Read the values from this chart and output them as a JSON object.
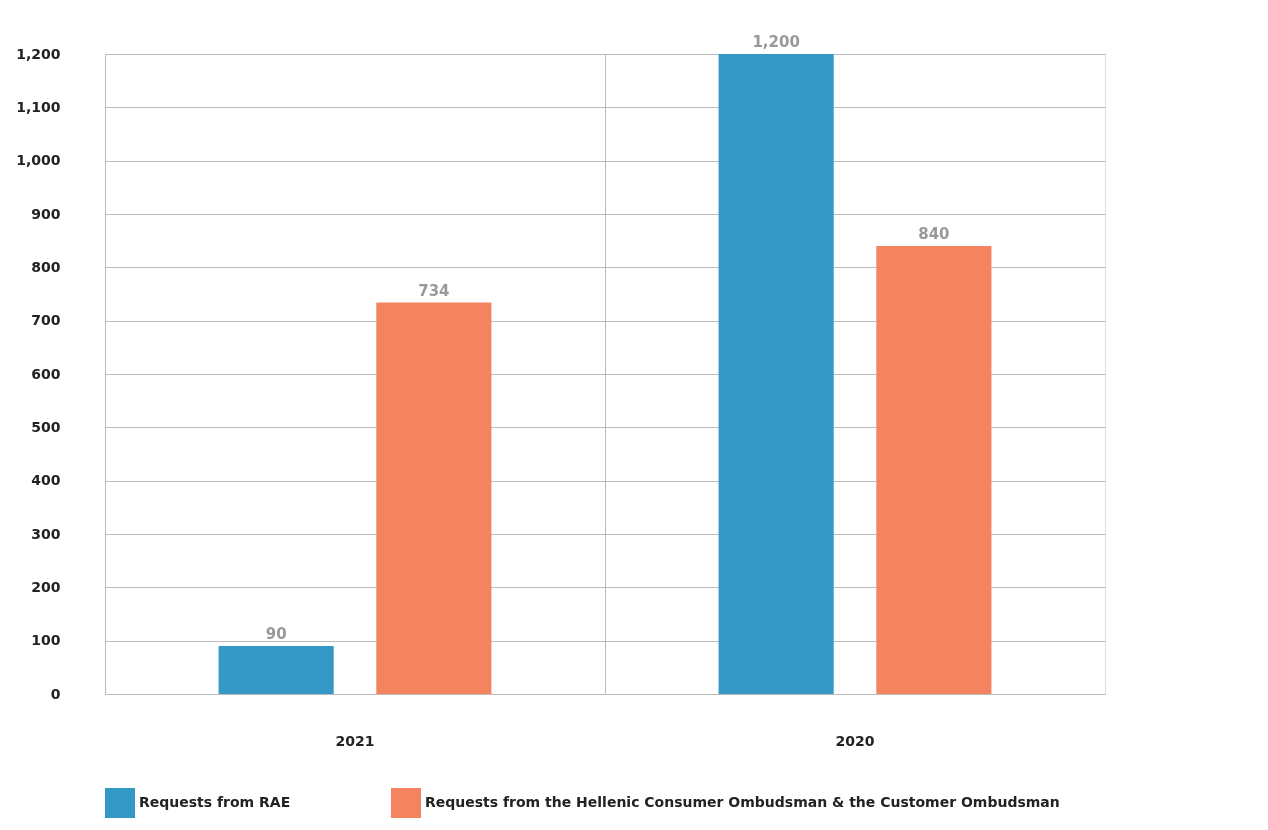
{
  "chart_data": {
    "type": "bar",
    "categories": [
      "2021",
      "2020"
    ],
    "series": [
      {
        "name": "Requests from RAE",
        "color": "#3599c6",
        "values": [
          90,
          1200
        ],
        "value_labels": [
          "90",
          "1,200"
        ]
      },
      {
        "name": "Requests from the Hellenic Consumer Ombudsman & the Customer Ombudsman",
        "color": "#f4845f",
        "values": [
          734,
          840
        ],
        "value_labels": [
          "734",
          "840"
        ]
      }
    ],
    "ylim": [
      0,
      1200
    ],
    "yticks": [
      {
        "value": 0,
        "label": "0"
      },
      {
        "value": 100,
        "label": "100"
      },
      {
        "value": 200,
        "label": "200"
      },
      {
        "value": 300,
        "label": "300"
      },
      {
        "value": 400,
        "label": "400"
      },
      {
        "value": 500,
        "label": "500"
      },
      {
        "value": 600,
        "label": "600"
      },
      {
        "value": 700,
        "label": "700"
      },
      {
        "value": 800,
        "label": "800"
      },
      {
        "value": 900,
        "label": "900"
      },
      {
        "value": 1000,
        "label": "1,000"
      },
      {
        "value": 1100,
        "label": "1,100"
      },
      {
        "value": 1200,
        "label": "1,200"
      }
    ],
    "grid": true,
    "legend": "bottom"
  }
}
